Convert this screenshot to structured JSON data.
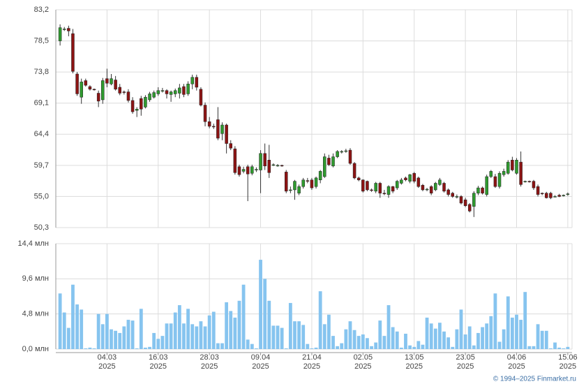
{
  "chart_data": [
    {
      "type": "candlestick",
      "open": [
        78.5,
        80.3,
        80.4,
        79.6,
        73.5,
        70.0,
        72.5,
        71.6,
        71.2,
        70.6,
        69.6,
        72.8,
        72.0,
        72.6,
        71.5,
        70.8,
        70.8,
        69.5,
        68.0,
        69.8,
        68.5,
        69.6,
        70.0,
        70.5,
        71.0,
        71.0,
        70.4,
        70.5,
        70.6,
        71.6,
        70.5,
        72.0,
        73.0,
        71.2,
        68.8,
        66.3,
        65.6,
        66.6,
        64.5,
        65.8,
        63.0,
        62.2,
        59.5,
        58.8,
        59.5,
        58.5,
        59.0,
        59.0,
        61.5,
        60.5,
        59.8,
        59.7,
        59.7,
        58.7,
        55.9,
        56.0,
        55.5,
        56.5,
        57.4,
        57.5,
        56.5,
        57.5,
        58.0,
        60.8,
        59.6,
        61.0,
        61.7,
        61.8,
        62.0,
        60.0,
        57.8,
        57.5,
        57.3,
        56.0,
        55.8,
        57.0,
        55.5,
        55.3,
        56.5,
        56.3,
        57.0,
        57.8,
        57.3,
        58.5,
        57.8,
        56.7,
        56.0,
        56.5,
        56.0,
        56.8,
        57.0,
        56.0,
        55.5,
        55.0,
        55.0,
        54.5,
        53.8,
        53.5,
        55.5,
        56.3,
        55.3,
        58.0,
        58.0,
        56.5,
        58.3,
        58.5,
        60.5,
        58.5,
        60.2,
        57.3,
        57.3,
        57.3,
        56.5,
        55.5,
        55.5,
        55.5,
        55.0,
        55.2,
        55.1,
        55.3
      ],
      "high": [
        81.0,
        80.6,
        80.8,
        80.3,
        73.8,
        72.8,
        72.8,
        71.8,
        71.3,
        71.0,
        72.9,
        74.3,
        73.5,
        73.2,
        72.0,
        71.0,
        71.2,
        70.0,
        68.5,
        70.2,
        70.3,
        70.8,
        71.0,
        71.5,
        71.4,
        71.2,
        71.0,
        71.3,
        72.0,
        72.0,
        72.4,
        73.4,
        73.4,
        71.5,
        69.2,
        67.0,
        66.0,
        68.5,
        66.2,
        66.0,
        63.5,
        62.6,
        59.8,
        59.5,
        59.8,
        59.8,
        59.4,
        62.0,
        63.0,
        62.8,
        60.0,
        59.9,
        59.8,
        59.0,
        56.5,
        57.5,
        56.8,
        57.8,
        57.8,
        57.8,
        58.0,
        59.0,
        61.5,
        61.3,
        61.5,
        62.0,
        62.0,
        62.2,
        62.3,
        60.2,
        58.0,
        57.6,
        57.4,
        56.2,
        57.2,
        57.2,
        56.0,
        56.7,
        56.6,
        57.5,
        57.8,
        58.0,
        58.4,
        58.7,
        58.0,
        56.9,
        56.3,
        56.7,
        57.2,
        57.8,
        57.2,
        56.2,
        55.7,
        55.3,
        55.2,
        54.8,
        54.0,
        55.8,
        56.6,
        56.5,
        58.3,
        59.0,
        58.4,
        58.8,
        59.2,
        60.5,
        61.0,
        60.8,
        61.8,
        57.4,
        57.4,
        57.5,
        56.8,
        55.6,
        55.7,
        55.7,
        55.2,
        55.4,
        55.3,
        55.6
      ],
      "low": [
        77.8,
        80.0,
        79.2,
        73.6,
        70.2,
        69.0,
        71.6,
        71.0,
        71.0,
        68.5,
        69.0,
        71.5,
        71.8,
        71.0,
        70.3,
        70.4,
        69.2,
        67.5,
        67.0,
        67.2,
        68.3,
        69.3,
        69.8,
        70.2,
        70.7,
        69.8,
        69.3,
        70.0,
        69.8,
        70.0,
        70.2,
        71.2,
        71.0,
        68.6,
        65.6,
        65.3,
        65.2,
        63.5,
        63.5,
        61.5,
        62.0,
        58.3,
        58.0,
        58.5,
        54.3,
        58.2,
        58.7,
        55.5,
        59.0,
        57.8,
        59.6,
        59.5,
        59.5,
        55.5,
        55.5,
        54.5,
        55.2,
        56.2,
        57.0,
        56.0,
        56.2,
        57.0,
        57.8,
        59.6,
        59.4,
        60.8,
        61.5,
        61.6,
        59.8,
        57.6,
        57.3,
        55.6,
        55.8,
        55.7,
        55.5,
        54.8,
        55.2,
        54.8,
        55.5,
        56.0,
        56.8,
        57.3,
        57.0,
        57.0,
        56.3,
        55.8,
        55.8,
        55.2,
        55.8,
        56.6,
        55.6,
        55.0,
        54.8,
        54.7,
        53.8,
        53.4,
        52.6,
        51.9,
        55.2,
        55.3,
        55.0,
        57.8,
        56.3,
        56.2,
        58.0,
        58.3,
        58.8,
        58.3,
        56.5,
        57.1,
        57.1,
        56.0,
        55.0,
        55.2,
        54.7,
        54.6,
        54.9,
        54.9,
        55.0,
        55.1
      ],
      "close": [
        80.5,
        80.3,
        80.0,
        73.9,
        70.5,
        72.3,
        71.8,
        71.2,
        71.1,
        69.4,
        72.5,
        72.1,
        72.8,
        71.2,
        70.6,
        70.7,
        69.5,
        67.8,
        68.2,
        68.2,
        70.0,
        70.5,
        70.7,
        71.0,
        71.0,
        70.5,
        70.8,
        71.0,
        71.4,
        70.4,
        72.0,
        73.0,
        71.5,
        68.8,
        66.3,
        65.6,
        65.5,
        63.8,
        65.8,
        63.0,
        62.3,
        58.6,
        58.3,
        59.1,
        58.4,
        59.5,
        59.1,
        61.5,
        59.6,
        58.6,
        59.8,
        59.7,
        59.6,
        55.8,
        56.0,
        57.3,
        56.5,
        57.5,
        57.3,
        56.3,
        57.8,
        58.8,
        61.0,
        59.8,
        61.0,
        61.8,
        61.8,
        61.9,
        60.0,
        57.8,
        57.5,
        55.8,
        56.0,
        55.9,
        57.0,
        55.5,
        55.4,
        56.5,
        55.8,
        57.3,
        57.5,
        57.5,
        58.3,
        57.3,
        56.5,
        56.0,
        56.1,
        55.5,
        57.0,
        57.5,
        55.8,
        55.3,
        55.0,
        55.0,
        54.0,
        53.6,
        52.8,
        55.5,
        56.3,
        55.5,
        58.0,
        58.8,
        56.5,
        58.5,
        58.8,
        60.2,
        59.0,
        60.5,
        56.8,
        57.3,
        57.2,
        56.3,
        55.3,
        55.4,
        54.8,
        54.8,
        55.0,
        55.0,
        55.2,
        55.4
      ],
      "up_color": "#2f9a2f",
      "down_color": "#8c1414",
      "xlim": [
        -1,
        120
      ],
      "ylim": [
        50.3,
        83.2
      ],
      "yticks": [
        {
          "value": 50.3,
          "label": "50,3"
        },
        {
          "value": 55.0,
          "label": "55,0"
        },
        {
          "value": 59.7,
          "label": "59,7"
        },
        {
          "value": 64.4,
          "label": "64,4"
        },
        {
          "value": 69.1,
          "label": "69,1"
        },
        {
          "value": 73.8,
          "label": "73,8"
        },
        {
          "value": 78.5,
          "label": "78,5"
        },
        {
          "value": 83.2,
          "label": "83,2"
        }
      ],
      "grid": true
    },
    {
      "type": "bar",
      "values": [
        7.6,
        5.0,
        2.9,
        8.8,
        6.1,
        5.4,
        0.1,
        0.2,
        0.1,
        4.8,
        3.4,
        4.8,
        2.7,
        2.5,
        2.2,
        3.1,
        4.0,
        3.9,
        0.1,
        5.5,
        0.2,
        0.3,
        2.2,
        1.4,
        1.8,
        3.5,
        3.5,
        5.0,
        6.0,
        3.5,
        5.5,
        3.4,
        3.1,
        3.8,
        3.1,
        4.6,
        5.1,
        0.8,
        0.8,
        6.4,
        5.2,
        4.3,
        6.6,
        8.8,
        1.3,
        0.7,
        0.1,
        12.2,
        9.6,
        6.6,
        3.2,
        3.2,
        2.9,
        0.1,
        6.3,
        3.8,
        3.8,
        3.3,
        0.7,
        0.1,
        0.2,
        7.9,
        3.4,
        4.7,
        1.8,
        0.4,
        0.8,
        2.7,
        3.8,
        2.6,
        1.8,
        2.0,
        1.5,
        0.4,
        0.9,
        3.9,
        1.8,
        6.0,
        3.0,
        2.4,
        0.2,
        2.1,
        0.5,
        0.3,
        1.1,
        0.6,
        4.3,
        3.5,
        2.8,
        3.6,
        2.4,
        1.6,
        0.3,
        2.7,
        5.4,
        2.0,
        3.1,
        0.5,
        2.2,
        3.0,
        3.5,
        4.5,
        7.6,
        1.0,
        2.7,
        7.2,
        4.3,
        4.7,
        4.0,
        7.8,
        0.4,
        0.4,
        3.4,
        2.5,
        2.5,
        0.1,
        0.9,
        0.2,
        0.1,
        0.3
      ],
      "color": "#86c4ef",
      "xlim": [
        -1,
        120
      ],
      "xticks": [
        {
          "value": 11,
          "label": [
            "04.03",
            "2025"
          ]
        },
        {
          "value": 23,
          "label": [
            "16.03",
            "2025"
          ]
        },
        {
          "value": 35,
          "label": [
            "28.03",
            "2025"
          ]
        },
        {
          "value": 47,
          "label": [
            "09.04",
            "2025"
          ]
        },
        {
          "value": 59,
          "label": [
            "21.04",
            "2025"
          ]
        },
        {
          "value": 71,
          "label": [
            "02.05",
            "2025"
          ]
        },
        {
          "value": 83,
          "label": [
            "13.05",
            "2025"
          ]
        },
        {
          "value": 95,
          "label": [
            "23.05",
            "2025"
          ]
        },
        {
          "value": 107,
          "label": [
            "04.06",
            "2025"
          ]
        },
        {
          "value": 119,
          "label": [
            "15.06",
            "2025"
          ]
        }
      ],
      "ylim": [
        0,
        14.4
      ],
      "yticks": [
        {
          "value": 0,
          "label": "0,0 млн"
        },
        {
          "value": 4.8,
          "label": "4,8 млн"
        },
        {
          "value": 9.6,
          "label": "9,6 млн"
        },
        {
          "value": 14.4,
          "label": "14,4 млн"
        }
      ],
      "grid": true
    }
  ],
  "footer": "© 1994–2025 Finmarket.ru"
}
